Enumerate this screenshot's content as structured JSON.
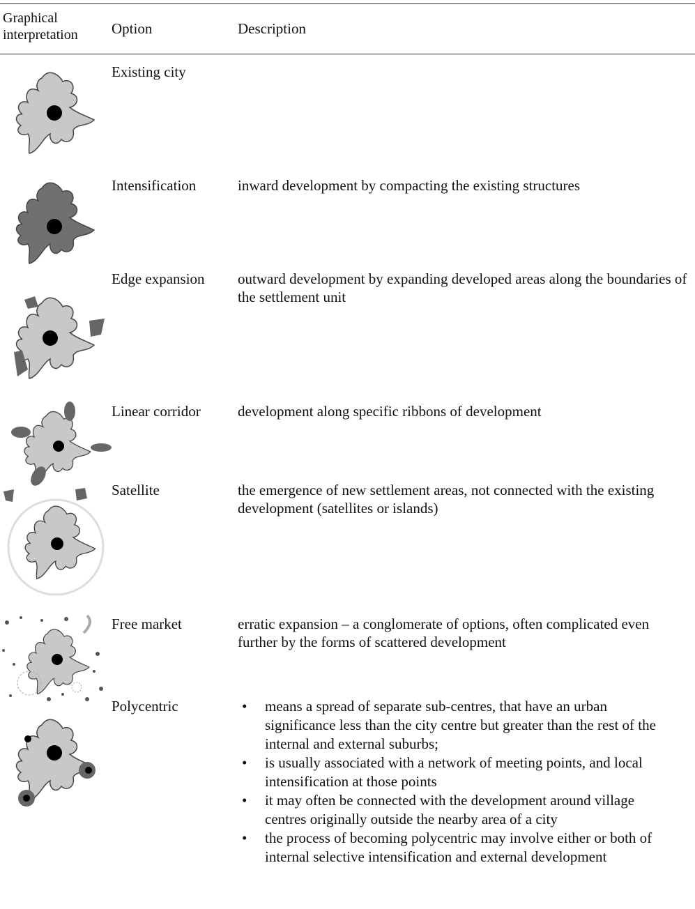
{
  "table": {
    "header": [
      "Graphical interpretation",
      "Option",
      "Description"
    ],
    "rows": [
      {
        "option": "Existing city"
      },
      {
        "option": "Intensification",
        "description": "inward development by compacting the existing structures"
      },
      {
        "option": "Edge expansion",
        "description": "outward development by expanding developed areas along the boundaries of the settlement unit"
      },
      {
        "option": "Linear corridor",
        "description": "development along specific ribbons of development"
      },
      {
        "option": "Satellite",
        "description": "the emergence of new settlement areas, not connected with the existing development (satellites or islands)"
      },
      {
        "option": "Free market",
        "description": "erratic expansion – a conglomerate of options, often complicated even further by the forms of scattered development"
      },
      {
        "option": "Polycentric",
        "description": [
          "means a spread of separate sub-centres, that have an urban significance less than the city centre but greater than the rest of the internal and external suburbs;",
          " is usually associated with a network of meeting points, and local intensification at those points",
          "it may often be connected with the development around village centres originally outside the nearby area of a city",
          "the process of becoming polycentric may involve either or both of internal selective intensification and external development"
        ]
      }
    ]
  }
}
